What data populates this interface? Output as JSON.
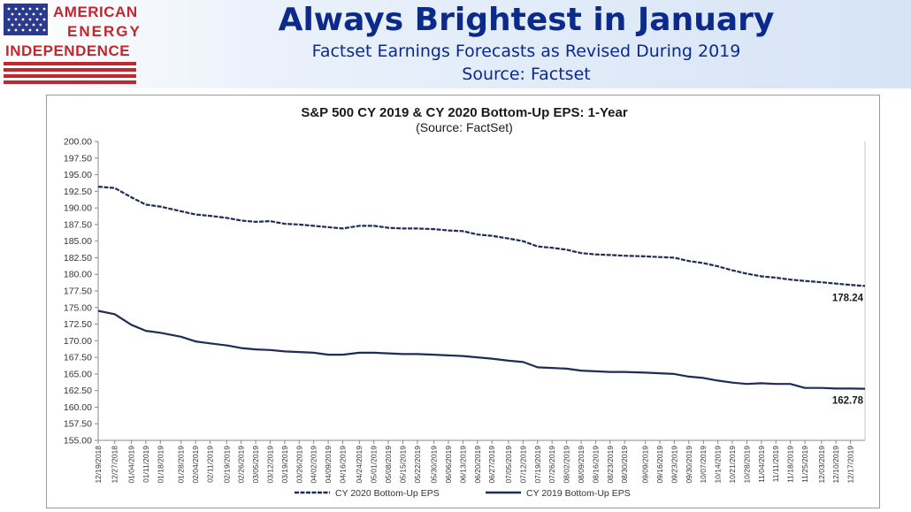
{
  "header": {
    "logo_lines": [
      "AMERICAN",
      "ENERGY",
      "INDEPENDENCE"
    ],
    "title": "Always Brightest in January",
    "subtitle": "Factset Earnings Forecasts as Revised During 2019",
    "source": "Source: Factset"
  },
  "colors": {
    "title": "#0b2a8a",
    "logo_red": "#c0282d",
    "line": "#1f2d55"
  },
  "chart_data": {
    "type": "line",
    "title": "S&P 500 CY 2019 & CY 2020 Bottom-Up EPS: 1-Year",
    "subtitle": "(Source: FactSet)",
    "ylim": [
      155,
      200
    ],
    "yticks": [
      "200.00",
      "197.50",
      "195.00",
      "192.50",
      "190.00",
      "187.50",
      "185.00",
      "182.50",
      "180.00",
      "177.50",
      "175.00",
      "172.50",
      "170.00",
      "167.50",
      "165.00",
      "162.50",
      "160.00",
      "157.50",
      "155.00"
    ],
    "x_range": [
      "2018-12-19",
      "2019-12-24"
    ],
    "xticks": [
      "12/19/2018",
      "12/27/2018",
      "01/04/2019",
      "01/11/2019",
      "01/18/2019",
      "01/28/2019",
      "02/04/2019",
      "02/11/2019",
      "02/19/2019",
      "02/26/2019",
      "03/05/2019",
      "03/12/2019",
      "03/19/2019",
      "03/26/2019",
      "04/02/2019",
      "04/09/2019",
      "04/16/2019",
      "04/24/2019",
      "05/01/2019",
      "05/08/2019",
      "05/15/2019",
      "05/22/2019",
      "05/30/2019",
      "06/06/2019",
      "06/13/2019",
      "06/20/2019",
      "06/27/2019",
      "07/05/2019",
      "07/12/2019",
      "07/19/2019",
      "07/26/2019",
      "08/02/2019",
      "08/09/2019",
      "08/16/2019",
      "08/23/2019",
      "08/30/2019",
      "09/09/2019",
      "09/16/2019",
      "09/23/2019",
      "09/30/2019",
      "10/07/2019",
      "10/14/2019",
      "10/21/2019",
      "10/28/2019",
      "11/04/2019",
      "11/11/2019",
      "11/18/2019",
      "11/25/2019",
      "12/03/2019",
      "12/10/2019",
      "12/17/2019"
    ],
    "legend_position": "bottom",
    "grid": false,
    "series": [
      {
        "name": "CY 2020 Bottom-Up EPS",
        "style": "dashed",
        "points": [
          [
            "2018-12-19",
            193.2
          ],
          [
            "2018-12-27",
            193.0
          ],
          [
            "2019-01-04",
            191.6
          ],
          [
            "2019-01-11",
            190.5
          ],
          [
            "2019-01-18",
            190.2
          ],
          [
            "2019-01-28",
            189.5
          ],
          [
            "2019-02-04",
            189.0
          ],
          [
            "2019-02-11",
            188.8
          ],
          [
            "2019-02-19",
            188.5
          ],
          [
            "2019-02-26",
            188.1
          ],
          [
            "2019-03-05",
            187.9
          ],
          [
            "2019-03-12",
            188.0
          ],
          [
            "2019-03-19",
            187.6
          ],
          [
            "2019-03-26",
            187.5
          ],
          [
            "2019-04-02",
            187.3
          ],
          [
            "2019-04-09",
            187.1
          ],
          [
            "2019-04-16",
            186.9
          ],
          [
            "2019-04-24",
            187.3
          ],
          [
            "2019-05-01",
            187.3
          ],
          [
            "2019-05-08",
            187.0
          ],
          [
            "2019-05-15",
            186.9
          ],
          [
            "2019-05-22",
            186.9
          ],
          [
            "2019-05-30",
            186.8
          ],
          [
            "2019-06-06",
            186.6
          ],
          [
            "2019-06-13",
            186.5
          ],
          [
            "2019-06-20",
            186.0
          ],
          [
            "2019-06-27",
            185.8
          ],
          [
            "2019-07-05",
            185.4
          ],
          [
            "2019-07-12",
            185.0
          ],
          [
            "2019-07-19",
            184.2
          ],
          [
            "2019-07-26",
            184.0
          ],
          [
            "2019-08-02",
            183.7
          ],
          [
            "2019-08-09",
            183.2
          ],
          [
            "2019-08-16",
            183.0
          ],
          [
            "2019-08-23",
            182.9
          ],
          [
            "2019-08-30",
            182.8
          ],
          [
            "2019-09-09",
            182.7
          ],
          [
            "2019-09-16",
            182.6
          ],
          [
            "2019-09-23",
            182.5
          ],
          [
            "2019-09-30",
            182.0
          ],
          [
            "2019-10-07",
            181.7
          ],
          [
            "2019-10-14",
            181.2
          ],
          [
            "2019-10-21",
            180.6
          ],
          [
            "2019-10-28",
            180.1
          ],
          [
            "2019-11-04",
            179.7
          ],
          [
            "2019-11-11",
            179.5
          ],
          [
            "2019-11-18",
            179.2
          ],
          [
            "2019-11-25",
            179.0
          ],
          [
            "2019-12-03",
            178.8
          ],
          [
            "2019-12-10",
            178.6
          ],
          [
            "2019-12-17",
            178.4
          ],
          [
            "2019-12-24",
            178.24
          ]
        ],
        "end_label": "178.24"
      },
      {
        "name": "CY 2019 Bottom-Up EPS",
        "style": "solid",
        "points": [
          [
            "2018-12-19",
            174.5
          ],
          [
            "2018-12-27",
            174.0
          ],
          [
            "2019-01-04",
            172.4
          ],
          [
            "2019-01-11",
            171.5
          ],
          [
            "2019-01-18",
            171.2
          ],
          [
            "2019-01-28",
            170.6
          ],
          [
            "2019-02-04",
            169.9
          ],
          [
            "2019-02-11",
            169.6
          ],
          [
            "2019-02-19",
            169.3
          ],
          [
            "2019-02-26",
            168.9
          ],
          [
            "2019-03-05",
            168.7
          ],
          [
            "2019-03-12",
            168.6
          ],
          [
            "2019-03-19",
            168.4
          ],
          [
            "2019-03-26",
            168.3
          ],
          [
            "2019-04-02",
            168.2
          ],
          [
            "2019-04-09",
            167.9
          ],
          [
            "2019-04-16",
            167.9
          ],
          [
            "2019-04-24",
            168.2
          ],
          [
            "2019-05-01",
            168.2
          ],
          [
            "2019-05-08",
            168.1
          ],
          [
            "2019-05-15",
            168.0
          ],
          [
            "2019-05-22",
            168.0
          ],
          [
            "2019-05-30",
            167.9
          ],
          [
            "2019-06-06",
            167.8
          ],
          [
            "2019-06-13",
            167.7
          ],
          [
            "2019-06-20",
            167.5
          ],
          [
            "2019-06-27",
            167.3
          ],
          [
            "2019-07-05",
            167.0
          ],
          [
            "2019-07-12",
            166.8
          ],
          [
            "2019-07-19",
            166.0
          ],
          [
            "2019-07-26",
            165.9
          ],
          [
            "2019-08-02",
            165.8
          ],
          [
            "2019-08-09",
            165.5
          ],
          [
            "2019-08-16",
            165.4
          ],
          [
            "2019-08-23",
            165.3
          ],
          [
            "2019-08-30",
            165.3
          ],
          [
            "2019-09-09",
            165.2
          ],
          [
            "2019-09-16",
            165.1
          ],
          [
            "2019-09-23",
            165.0
          ],
          [
            "2019-09-30",
            164.6
          ],
          [
            "2019-10-07",
            164.4
          ],
          [
            "2019-10-14",
            164.0
          ],
          [
            "2019-10-21",
            163.7
          ],
          [
            "2019-10-28",
            163.5
          ],
          [
            "2019-11-04",
            163.6
          ],
          [
            "2019-11-11",
            163.5
          ],
          [
            "2019-11-18",
            163.5
          ],
          [
            "2019-11-25",
            162.9
          ],
          [
            "2019-12-03",
            162.9
          ],
          [
            "2019-12-10",
            162.8
          ],
          [
            "2019-12-17",
            162.8
          ],
          [
            "2019-12-24",
            162.78
          ]
        ],
        "end_label": "162.78"
      }
    ]
  }
}
